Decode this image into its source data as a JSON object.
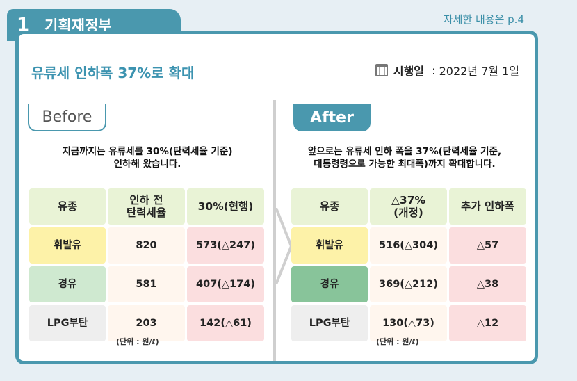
{
  "section": {
    "number": "1",
    "title": "기획재정부"
  },
  "reference": "자세한 내용은 p.4",
  "headline": "유류세 인하폭 37%로 확대",
  "effective": {
    "label": "시행일",
    "separator": " : ",
    "date": "2022년 7월 1일"
  },
  "before": {
    "tab": "Before",
    "description_line1": "지금까지는 유류세를 30%(탄력세율 기준)",
    "description_line2": "인하해 왔습니다.",
    "headers": [
      "유종",
      "인하 전\n탄력세율",
      "30%(현행)"
    ],
    "rows": [
      [
        "휘발유",
        "820",
        "573(△247)"
      ],
      [
        "경유",
        "581",
        "407(△174)"
      ],
      [
        "LPG부탄",
        "203",
        "142(△61)"
      ]
    ],
    "unit": "(단위 : 원/ℓ)"
  },
  "after": {
    "tab": "After",
    "description_line1": "앞으로는 유류세 인하 폭을 37%(탄력세율 기준,",
    "description_line2": "대통령령으로 가능한 최대폭)까지 확대합니다.",
    "headers": [
      "유종",
      "△37%\n(개정)",
      "추가 인하폭"
    ],
    "rows": [
      [
        "휘발유",
        "516(△304)",
        "△57"
      ],
      [
        "경유",
        "369(△212)",
        "△38"
      ],
      [
        "LPG부탄",
        "130(△73)",
        "△12"
      ]
    ],
    "unit": "(단위 : 원/ℓ)"
  },
  "colors": {
    "accent": "#4a98ae",
    "gasoline": "#fdf2a8",
    "diesel": "#cfe9d0",
    "lpg": "#eeeeee",
    "pink": "#fbdedf"
  }
}
